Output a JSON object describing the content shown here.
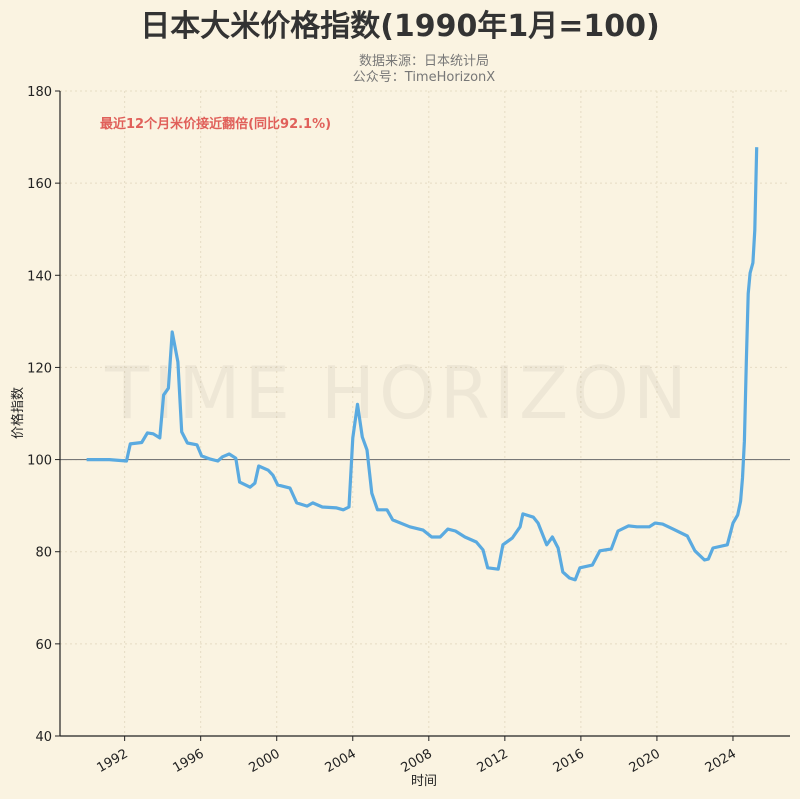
{
  "chart_data": {
    "type": "line",
    "title": "日本大米价格指数(1990年1月=100)",
    "subtitle_lines": [
      "数据来源：日本统计局",
      "公众号：TimeHorizonX"
    ],
    "xlabel": "时间",
    "ylabel": "价格指数",
    "watermark": "TIME HORIZON",
    "annotation": "最近12个月米价接近翻倍(同比92.1%)",
    "xlim": [
      1988.6,
      2027.0
    ],
    "ylim": [
      40,
      180
    ],
    "xticks": [
      1992,
      1996,
      2000,
      2004,
      2008,
      2012,
      2016,
      2020,
      2024
    ],
    "yticks": [
      40,
      60,
      80,
      100,
      120,
      140,
      160,
      180
    ],
    "reference_line": 100,
    "grid": true,
    "colors": {
      "line": "#5aaae0",
      "reference": "#777777",
      "annotation": "#e0605a",
      "background": "#faf3e1"
    },
    "series": [
      {
        "x": [
          1990.0,
          1991.2,
          1992.1,
          1992.3,
          1992.9,
          1993.2,
          1993.5,
          1993.85,
          1994.05,
          1994.3,
          1994.5,
          1994.8,
          1995.0,
          1995.3,
          1995.8,
          1996.05,
          1996.5,
          1996.9,
          1997.15,
          1997.5,
          1997.85,
          1998.05,
          1998.6,
          1998.85,
          1999.05,
          1999.55,
          1999.8,
          2000.05,
          2000.7,
          2001.05,
          2001.6,
          2001.9,
          2002.4,
          2003.15,
          2003.5,
          2003.8,
          2004.0,
          2004.25,
          2004.5,
          2004.75,
          2005.0,
          2005.3,
          2005.8,
          2006.1,
          2007.0,
          2007.7,
          2008.15,
          2008.6,
          2009.0,
          2009.4,
          2009.9,
          2010.5,
          2010.85,
          2011.1,
          2011.65,
          2011.9,
          2012.4,
          2012.8,
          2012.95,
          2013.5,
          2013.75,
          2014.2,
          2014.5,
          2014.8,
          2015.05,
          2015.4,
          2015.7,
          2015.95,
          2016.6,
          2017.0,
          2017.6,
          2017.95,
          2018.5,
          2018.95,
          2019.6,
          2019.9,
          2020.3,
          2020.85,
          2021.6,
          2022.0,
          2022.5,
          2022.7,
          2022.95,
          2023.7,
          2024.0,
          2024.25,
          2024.4,
          2024.5,
          2024.6,
          2024.7,
          2024.8,
          2024.9,
          2025.05,
          2025.15,
          2025.25
        ],
        "y": [
          100,
          100,
          99.7,
          103.4,
          103.7,
          105.8,
          105.6,
          104.7,
          114,
          115.5,
          127.7,
          121.2,
          106,
          103.6,
          103.2,
          100.8,
          100.1,
          99.7,
          100.6,
          101.2,
          100.3,
          95.1,
          94.0,
          94.9,
          98.6,
          97.7,
          96.6,
          94.5,
          93.8,
          90.6,
          89.9,
          90.6,
          89.7,
          89.5,
          89.1,
          89.7,
          104.7,
          112,
          104.9,
          102.1,
          92.7,
          89.1,
          89.1,
          86.9,
          85.4,
          84.7,
          83.2,
          83.2,
          84.9,
          84.5,
          83.2,
          82.1,
          80.4,
          76.5,
          76.2,
          81.5,
          83.0,
          85.4,
          88.2,
          87.5,
          86.2,
          81.5,
          83.2,
          80.8,
          75.6,
          74.3,
          73.9,
          76.5,
          77.1,
          80.2,
          80.6,
          84.5,
          85.6,
          85.4,
          85.4,
          86.2,
          86.0,
          84.9,
          83.4,
          80.2,
          78.2,
          78.4,
          80.8,
          81.5,
          86.2,
          88.0,
          91.0,
          96.0,
          104.0,
          121.0,
          136.0,
          140.5,
          142.7,
          149.8,
          167.8
        ]
      }
    ]
  }
}
